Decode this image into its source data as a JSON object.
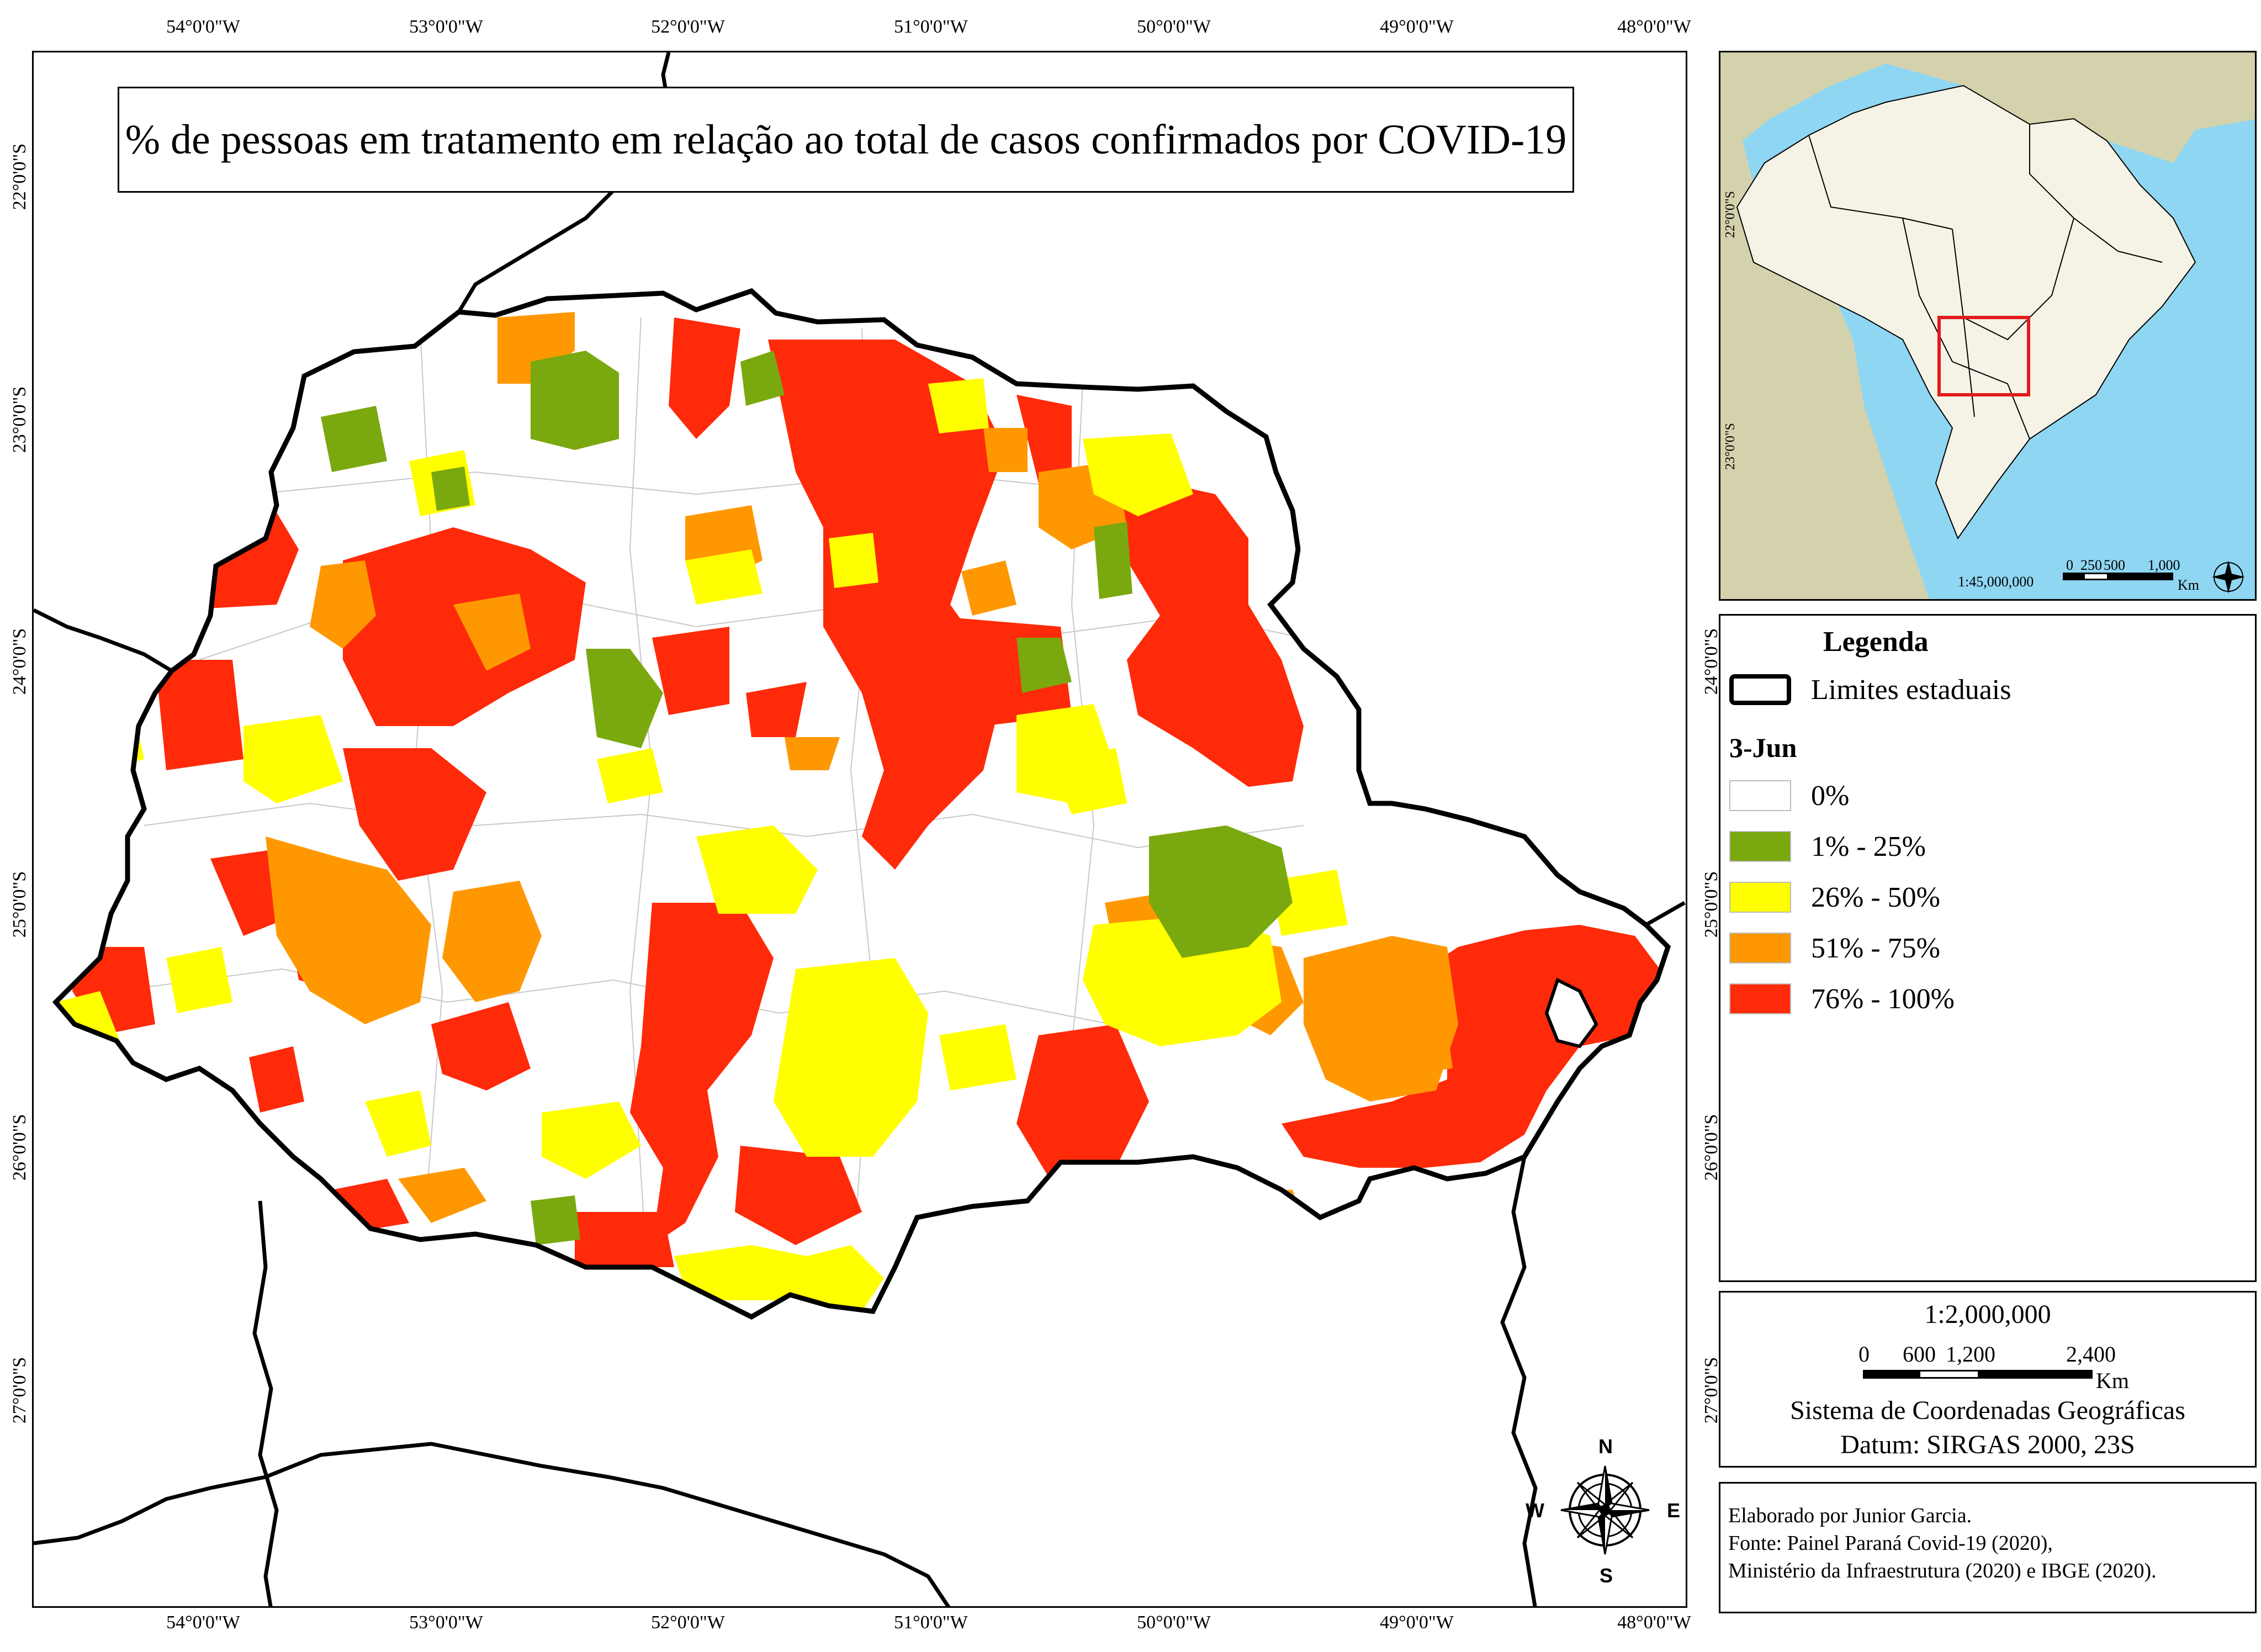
{
  "map": {
    "title": "% de pessoas em tratamento em relação ao total de casos confirmados por COVID-19",
    "longitude_ticks": [
      "54°0'0\"W",
      "53°0'0\"W",
      "52°0'0\"W",
      "51°0'0\"W",
      "50°0'0\"W",
      "49°0'0\"W",
      "48°0'0\"W"
    ],
    "latitude_ticks": [
      "22°0'0\"S",
      "23°0'0\"S",
      "24°0'0\"S",
      "25°0'0\"S",
      "26°0'0\"S",
      "27°0'0\"S"
    ],
    "compass": {
      "n": "N",
      "s": "S",
      "e": "E",
      "w": "W"
    },
    "colors": {
      "c0": "#ffffff",
      "c1": "#7aa80f",
      "c2": "#ffff00",
      "c3": "#ff9800",
      "c4": "#ff2a0a",
      "boundary": "#000000",
      "municipal_line": "#b0b0b0"
    }
  },
  "legend": {
    "title": "Legenda",
    "state_limits_label": "Limites estaduais",
    "date_label": "3-Jun",
    "classes": [
      {
        "label": "0%",
        "color": "#ffffff"
      },
      {
        "label": "1% - 25%",
        "color": "#7aa80f"
      },
      {
        "label": "26% - 50%",
        "color": "#ffff00"
      },
      {
        "label": "51% - 75%",
        "color": "#ff9800"
      },
      {
        "label": "76% - 100%",
        "color": "#ff2a0a"
      }
    ]
  },
  "scale": {
    "ratio": "1:2,000,000",
    "ticks": [
      "0",
      "600",
      "1,200",
      "2,400"
    ],
    "unit": "Km",
    "crs": "Sistema de Coordenadas Geográficas",
    "datum": "Datum: SIRGAS 2000, 23S"
  },
  "inset": {
    "latitude_ticks": [
      "22°0'0\"S",
      "23°0'0\"S"
    ],
    "ratio": "1:45,000,000",
    "ticks": [
      "0",
      "250",
      "500",
      "1,000"
    ],
    "unit": "Km",
    "colors": {
      "ocean": "#8fd6f2",
      "south_america": "#d4d2ad",
      "brazil": "#f4f3e6",
      "highlight": "#e31a1c"
    }
  },
  "credits": {
    "lines": [
      "Elaborado por Junior Garcia.",
      "Fonte: Painel Paraná Covid-19 (2020),",
      "Ministério da Infraestrutura (2020) e IBGE (2020)."
    ]
  }
}
